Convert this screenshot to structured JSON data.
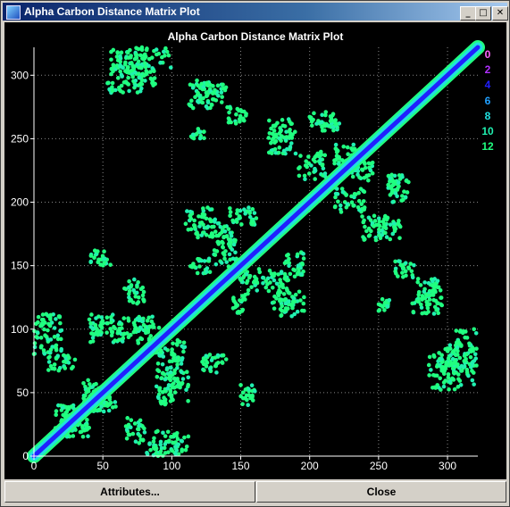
{
  "window": {
    "title": "Alpha Carbon Distance Matrix Plot"
  },
  "title_buttons": {
    "minimize": "_",
    "maximize": "□",
    "close": "✕"
  },
  "icons": {
    "app": "molecule-app-icon",
    "minimize": "minimize-icon",
    "maximize": "maximize-icon",
    "close": "close-icon"
  },
  "buttons": {
    "attributes": "Attributes...",
    "close": "Close"
  },
  "chart_data": {
    "type": "heatmap",
    "title": "Alpha Carbon Distance Matrix Plot",
    "xlabel": "",
    "ylabel": "",
    "xlim": [
      0,
      322
    ],
    "ylim": [
      0,
      322
    ],
    "xticks": [
      0,
      50,
      100,
      150,
      200,
      250,
      300
    ],
    "yticks": [
      0,
      50,
      100,
      150,
      200,
      250,
      300
    ],
    "grid": true,
    "legend_placement": "right",
    "legend": [
      {
        "label": "0",
        "color": "#ff66ff"
      },
      {
        "label": "2",
        "color": "#b030ff"
      },
      {
        "label": "4",
        "color": "#2020ff"
      },
      {
        "label": "6",
        "color": "#20a0ff"
      },
      {
        "label": "8",
        "color": "#20e0e0"
      },
      {
        "label": "10",
        "color": "#20f0b0"
      },
      {
        "label": "12",
        "color": "#20ff80"
      }
    ],
    "diagonal": {
      "from": 0,
      "to": 322
    },
    "contact_regions": [
      {
        "x": [
          56,
          76
        ],
        "y": [
          300,
          320
        ]
      },
      {
        "x": [
          70,
          88
        ],
        "y": [
          292,
          308
        ]
      },
      {
        "x": [
          118,
          140
        ],
        "y": [
          278,
          296
        ]
      },
      {
        "x": [
          140,
          154
        ],
        "y": [
          262,
          276
        ]
      },
      {
        "x": [
          114,
          124
        ],
        "y": [
          250,
          258
        ]
      },
      {
        "x": [
          170,
          188
        ],
        "y": [
          250,
          266
        ]
      },
      {
        "x": [
          208,
          222
        ],
        "y": [
          256,
          264
        ]
      },
      {
        "x": [
          192,
          212
        ],
        "y": [
          218,
          240
        ]
      },
      {
        "x": [
          216,
          234
        ],
        "y": [
          230,
          246
        ]
      },
      {
        "x": [
          182,
          196
        ],
        "y": [
          140,
          162
        ]
      },
      {
        "x": [
          172,
          186
        ],
        "y": [
          114,
          146
        ]
      },
      {
        "x": [
          110,
          132
        ],
        "y": [
          178,
          196
        ]
      },
      {
        "x": [
          130,
          148
        ],
        "y": [
          148,
          172
        ]
      },
      {
        "x": [
          144,
          156
        ],
        "y": [
          112,
          128
        ]
      },
      {
        "x": [
          238,
          256
        ],
        "y": [
          170,
          190
        ]
      },
      {
        "x": [
          258,
          272
        ],
        "y": [
          200,
          222
        ]
      },
      {
        "x": [
          274,
          294
        ],
        "y": [
          112,
          130
        ]
      },
      {
        "x": [
          286,
          308
        ],
        "y": [
          52,
          80
        ]
      },
      {
        "x": [
          306,
          322
        ],
        "y": [
          68,
          100
        ]
      },
      {
        "x": [
          15,
          40
        ],
        "y": [
          20,
          40
        ]
      },
      {
        "x": [
          35,
          60
        ],
        "y": [
          35,
          55
        ]
      },
      {
        "x": [
          0,
          20
        ],
        "y": [
          80,
          100
        ]
      },
      {
        "x": [
          40,
          70
        ],
        "y": [
          95,
          112
        ]
      },
      {
        "x": [
          88,
          102
        ],
        "y": [
          40,
          86
        ]
      },
      {
        "x": [
          120,
          140
        ],
        "y": [
          65,
          80
        ]
      },
      {
        "x": [
          72,
          92
        ],
        "y": [
          100,
          110
        ]
      },
      {
        "x": [
          66,
          80
        ],
        "y": [
          10,
          30
        ]
      },
      {
        "x": [
          100,
          112
        ],
        "y": [
          0,
          20
        ]
      },
      {
        "x": [
          150,
          162
        ],
        "y": [
          40,
          56
        ]
      }
    ]
  }
}
